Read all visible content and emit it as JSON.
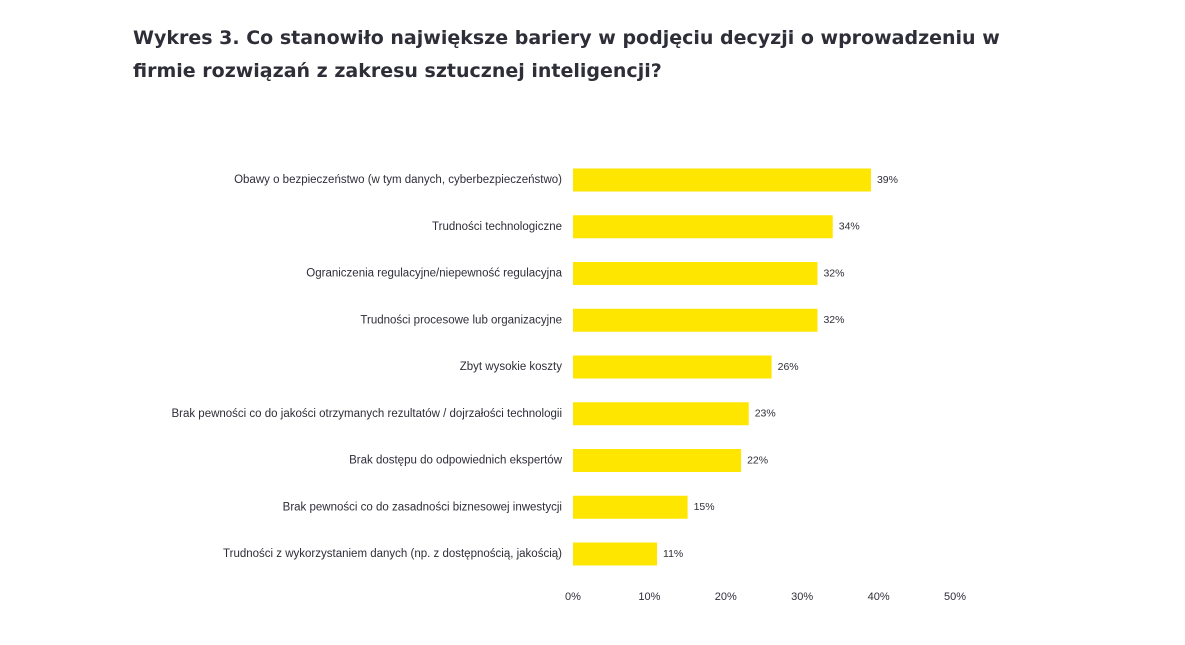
{
  "chart_data": {
    "type": "bar",
    "orientation": "horizontal",
    "title": "Wykres 3. Co stanowiło największe bariery w podjęciu decyzji o wprowadzeniu w firmie rozwiązań z zakresu sztucznej inteligencji?",
    "xlabel": "",
    "ylabel": "",
    "xlim": [
      0,
      50
    ],
    "grid": false,
    "legend": "none",
    "bar_color": "#ffe600",
    "text_color": "#2e2e38",
    "categories": [
      "Obawy o bezpieczeństwo (w tym danych, cyberbezpieczeństwo)",
      "Trudności technologiczne",
      "Ograniczenia regulacyjne/niepewność regulacyjna",
      "Trudności procesowe lub organizacyjne",
      "Zbyt wysokie koszty",
      "Brak pewności co do jakości otrzymanych rezultatów / dojrzałości technologii",
      "Brak dostępu do odpowiednich ekspertów",
      "Brak pewności co do zasadności biznesowej inwestycji",
      "Trudności z wykorzystaniem danych (np. z dostępnością, jakością)"
    ],
    "values": [
      39,
      34,
      32,
      32,
      26,
      23,
      22,
      15,
      11
    ],
    "value_labels": [
      "39%",
      "34%",
      "32%",
      "32%",
      "26%",
      "23%",
      "22%",
      "15%",
      "11%"
    ],
    "x_ticks": [
      0,
      10,
      20,
      30,
      40,
      50
    ],
    "x_tick_labels": [
      "0%",
      "10%",
      "20%",
      "30%",
      "40%",
      "50%"
    ]
  }
}
